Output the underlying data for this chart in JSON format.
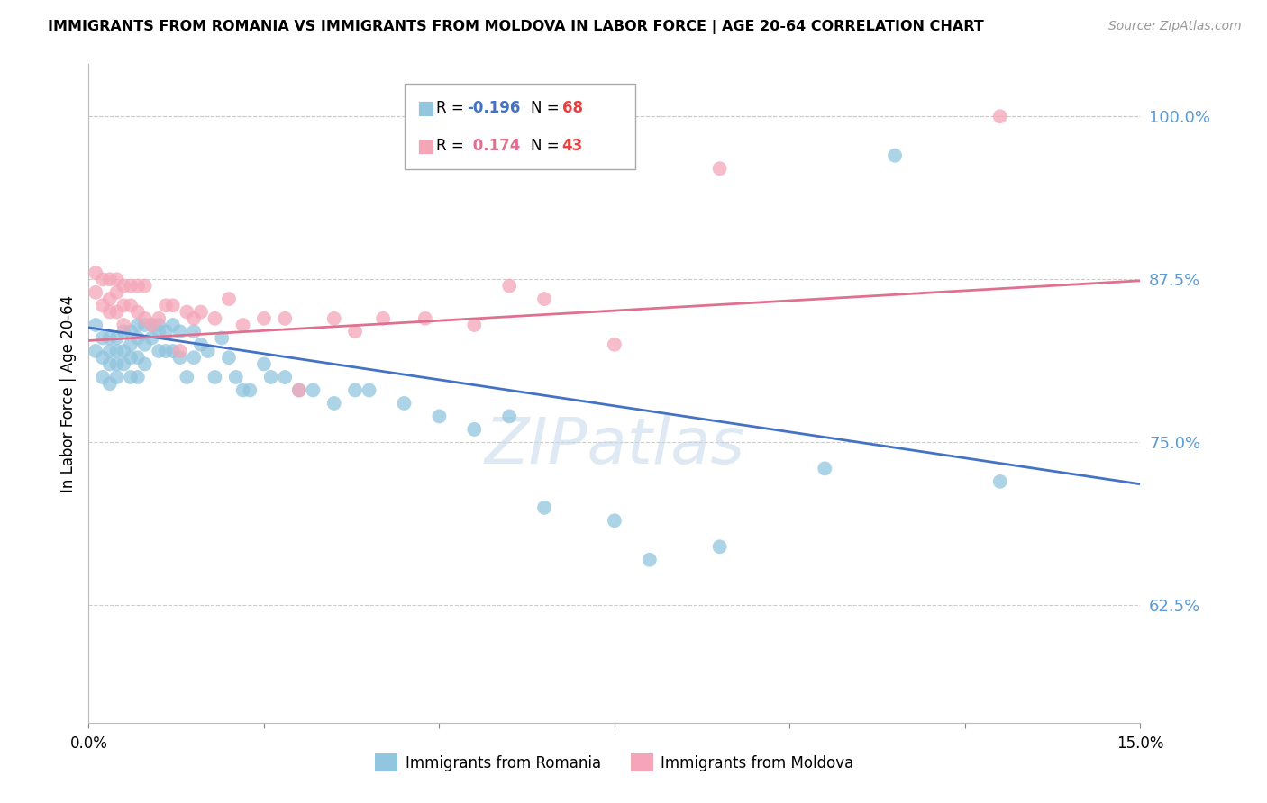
{
  "title": "IMMIGRANTS FROM ROMANIA VS IMMIGRANTS FROM MOLDOVA IN LABOR FORCE | AGE 20-64 CORRELATION CHART",
  "source": "Source: ZipAtlas.com",
  "ylabel": "In Labor Force | Age 20-64",
  "xlim": [
    0.0,
    0.15
  ],
  "ylim": [
    0.535,
    1.04
  ],
  "xticks": [
    0.0,
    0.025,
    0.05,
    0.075,
    0.1,
    0.125,
    0.15
  ],
  "xtick_labels": [
    "0.0%",
    "",
    "",
    "",
    "",
    "",
    "15.0%"
  ],
  "ytick_labels_right": [
    "62.5%",
    "75.0%",
    "87.5%",
    "100.0%"
  ],
  "yticks_right": [
    0.625,
    0.75,
    0.875,
    1.0
  ],
  "color_romania": "#92c5de",
  "color_moldova": "#f4a6b8",
  "color_romania_line": "#4472c4",
  "color_moldova_line": "#e07090",
  "color_ytick_right": "#5b9bd5",
  "romania_x": [
    0.001,
    0.001,
    0.002,
    0.002,
    0.002,
    0.003,
    0.003,
    0.003,
    0.003,
    0.004,
    0.004,
    0.004,
    0.004,
    0.005,
    0.005,
    0.005,
    0.006,
    0.006,
    0.006,
    0.006,
    0.007,
    0.007,
    0.007,
    0.007,
    0.008,
    0.008,
    0.008,
    0.009,
    0.009,
    0.01,
    0.01,
    0.01,
    0.011,
    0.011,
    0.012,
    0.012,
    0.013,
    0.013,
    0.014,
    0.015,
    0.015,
    0.016,
    0.017,
    0.018,
    0.019,
    0.02,
    0.021,
    0.022,
    0.023,
    0.025,
    0.026,
    0.028,
    0.03,
    0.032,
    0.035,
    0.038,
    0.04,
    0.045,
    0.05,
    0.055,
    0.06,
    0.065,
    0.075,
    0.08,
    0.09,
    0.105,
    0.115,
    0.13
  ],
  "romania_y": [
    0.84,
    0.82,
    0.83,
    0.815,
    0.8,
    0.83,
    0.82,
    0.81,
    0.795,
    0.83,
    0.82,
    0.81,
    0.8,
    0.835,
    0.82,
    0.81,
    0.835,
    0.825,
    0.815,
    0.8,
    0.84,
    0.83,
    0.815,
    0.8,
    0.84,
    0.825,
    0.81,
    0.84,
    0.83,
    0.84,
    0.835,
    0.82,
    0.835,
    0.82,
    0.84,
    0.82,
    0.835,
    0.815,
    0.8,
    0.835,
    0.815,
    0.825,
    0.82,
    0.8,
    0.83,
    0.815,
    0.8,
    0.79,
    0.79,
    0.81,
    0.8,
    0.8,
    0.79,
    0.79,
    0.78,
    0.79,
    0.79,
    0.78,
    0.77,
    0.76,
    0.77,
    0.7,
    0.69,
    0.66,
    0.67,
    0.73,
    0.97,
    0.72
  ],
  "moldova_x": [
    0.001,
    0.001,
    0.002,
    0.002,
    0.003,
    0.003,
    0.003,
    0.004,
    0.004,
    0.004,
    0.005,
    0.005,
    0.005,
    0.006,
    0.006,
    0.007,
    0.007,
    0.008,
    0.008,
    0.009,
    0.01,
    0.011,
    0.012,
    0.013,
    0.014,
    0.015,
    0.016,
    0.018,
    0.02,
    0.022,
    0.025,
    0.028,
    0.03,
    0.035,
    0.038,
    0.042,
    0.048,
    0.055,
    0.06,
    0.065,
    0.075,
    0.09,
    0.13
  ],
  "moldova_y": [
    0.88,
    0.865,
    0.875,
    0.855,
    0.875,
    0.86,
    0.85,
    0.875,
    0.865,
    0.85,
    0.87,
    0.855,
    0.84,
    0.87,
    0.855,
    0.87,
    0.85,
    0.87,
    0.845,
    0.84,
    0.845,
    0.855,
    0.855,
    0.82,
    0.85,
    0.845,
    0.85,
    0.845,
    0.86,
    0.84,
    0.845,
    0.845,
    0.79,
    0.845,
    0.835,
    0.845,
    0.845,
    0.84,
    0.87,
    0.86,
    0.825,
    0.96,
    1.0
  ],
  "watermark": "ZIPatlas",
  "background_color": "#ffffff",
  "grid_color": "#cccccc",
  "grid_style": "--"
}
